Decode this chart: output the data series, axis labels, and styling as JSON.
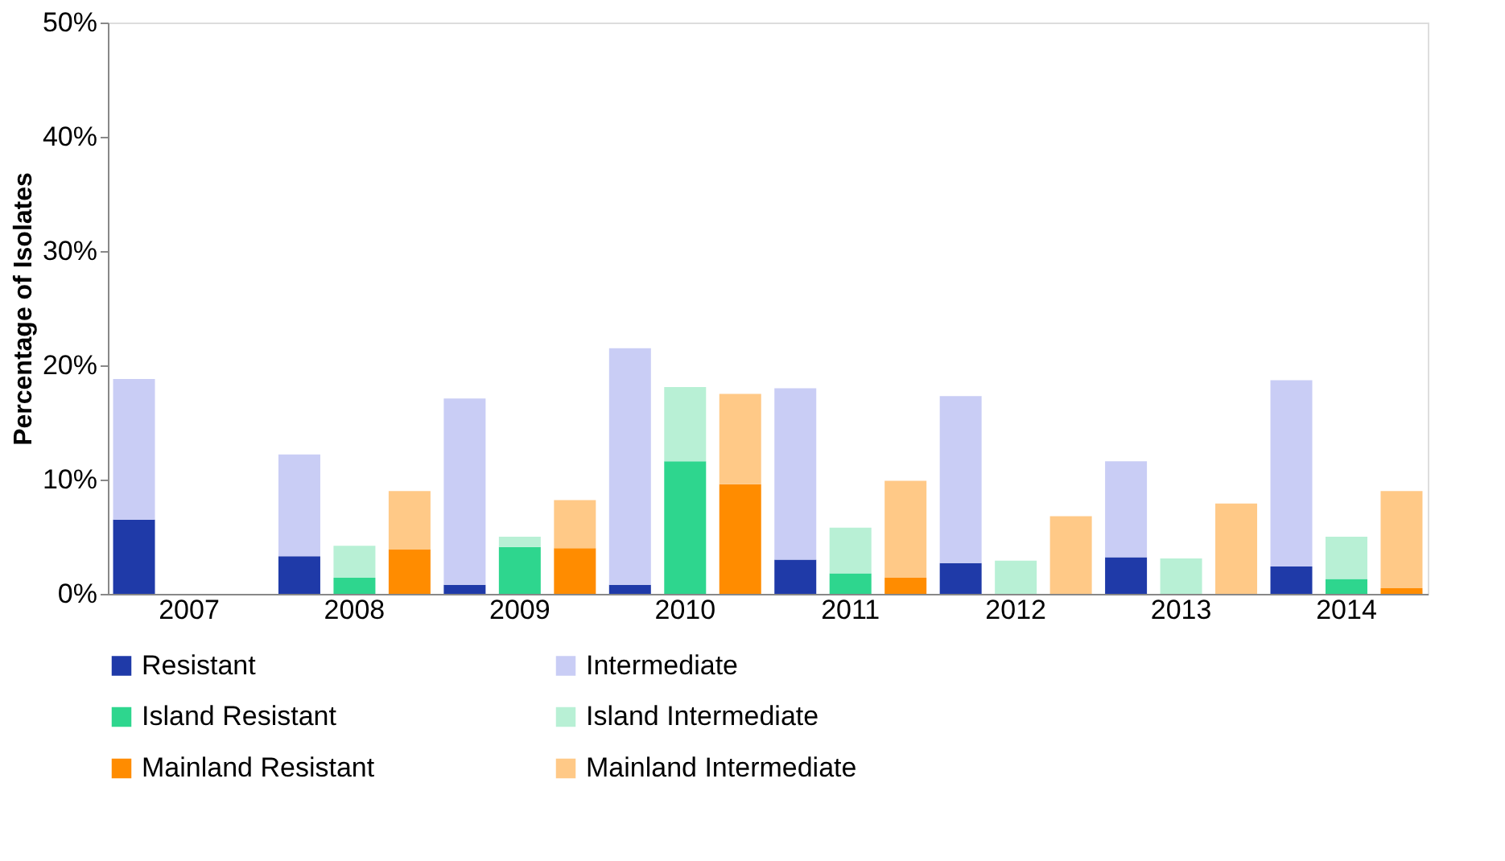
{
  "chart_data": {
    "type": "bar",
    "stacked": true,
    "ylabel": "Percentage of Isolates",
    "categories": [
      null,
      "2007",
      null,
      null,
      "2008",
      null,
      null,
      "2009",
      null,
      null,
      "2010",
      null,
      null,
      "2011",
      null,
      null,
      "2012",
      null,
      null,
      "2013",
      null,
      null,
      "2014",
      null
    ],
    "series": [
      {
        "name": "Resistant",
        "color": "#1f3aa8",
        "values": [
          6.5,
          null,
          null,
          3.3,
          null,
          null,
          0.8,
          null,
          null,
          0.8,
          null,
          null,
          3.0,
          null,
          null,
          2.7,
          null,
          null,
          3.2,
          null,
          null,
          2.4,
          null,
          null
        ]
      },
      {
        "name": "Intermediate",
        "color": "#c9cdf5",
        "values": [
          12.3,
          null,
          null,
          8.9,
          null,
          null,
          16.3,
          null,
          null,
          20.7,
          null,
          null,
          15.0,
          null,
          null,
          14.6,
          null,
          null,
          8.4,
          null,
          null,
          16.3,
          null,
          null
        ]
      },
      {
        "name": "Island Resistant",
        "color": "#2ed68e",
        "values": [
          null,
          null,
          null,
          null,
          1.4,
          null,
          null,
          4.1,
          null,
          null,
          11.6,
          null,
          null,
          1.8,
          null,
          null,
          0,
          null,
          null,
          0,
          null,
          null,
          1.3,
          null
        ]
      },
      {
        "name": "Island Intermediate",
        "color": "#b8f0d5",
        "values": [
          null,
          null,
          null,
          null,
          2.8,
          null,
          null,
          0.9,
          null,
          null,
          6.5,
          null,
          null,
          4.0,
          null,
          null,
          2.9,
          null,
          null,
          3.1,
          null,
          null,
          3.7,
          null
        ]
      },
      {
        "name": "Mainland Resistant",
        "color": "#ff8c00",
        "values": [
          null,
          null,
          null,
          null,
          null,
          3.9,
          null,
          null,
          4.0,
          null,
          null,
          9.6,
          null,
          null,
          1.4,
          null,
          null,
          0,
          null,
          null,
          0,
          null,
          null,
          0.5
        ]
      },
      {
        "name": "Mainland Intermediate",
        "color": "#ffc987",
        "values": [
          null,
          null,
          null,
          null,
          null,
          5.1,
          null,
          null,
          4.2,
          null,
          null,
          7.9,
          null,
          null,
          8.5,
          null,
          null,
          6.8,
          null,
          null,
          7.9,
          null,
          null,
          8.5
        ]
      }
    ],
    "ylim": [
      0,
      50
    ],
    "yticks": [
      {
        "value": 0,
        "label": "0%"
      },
      {
        "value": 10,
        "label": "10%"
      },
      {
        "value": 20,
        "label": "20%"
      },
      {
        "value": 30,
        "label": "30%"
      },
      {
        "value": 40,
        "label": "40%"
      },
      {
        "value": 50,
        "label": "50%"
      }
    ],
    "grid": false,
    "legend": "bottom"
  }
}
